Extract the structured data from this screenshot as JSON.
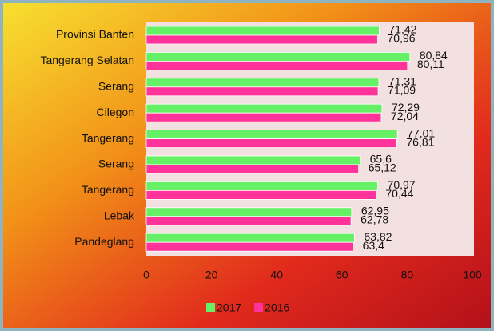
{
  "chart_data": {
    "type": "bar",
    "orientation": "horizontal",
    "categories": [
      "Provinsi Banten",
      "Tangerang Selatan",
      "Serang",
      "Cilegon",
      "Tangerang",
      "Serang",
      "Tangerang",
      "Lebak",
      "Pandeglang"
    ],
    "series": [
      {
        "name": "2017",
        "color": "#66f066",
        "values": [
          71.42,
          80.84,
          71.31,
          72.29,
          77.01,
          65.6,
          70.97,
          62.95,
          63.82
        ],
        "value_labels": [
          "71,42",
          "80,84",
          "71,31",
          "72,29",
          "77,01",
          "65,6",
          "70,97",
          "62,95",
          "63,82"
        ]
      },
      {
        "name": "2016",
        "color": "#ff3399",
        "values": [
          70.96,
          80.11,
          71.09,
          72.04,
          76.81,
          65.12,
          70.44,
          62.78,
          63.4
        ],
        "value_labels": [
          "70,96",
          "80,11",
          "71,09",
          "72,04",
          "76,81",
          "65,12",
          "70,44",
          "62,78",
          "63,4"
        ]
      }
    ],
    "xlim": [
      0,
      100
    ],
    "xticks": [
      0,
      20,
      40,
      60,
      80,
      100
    ],
    "legend": "bottom"
  }
}
